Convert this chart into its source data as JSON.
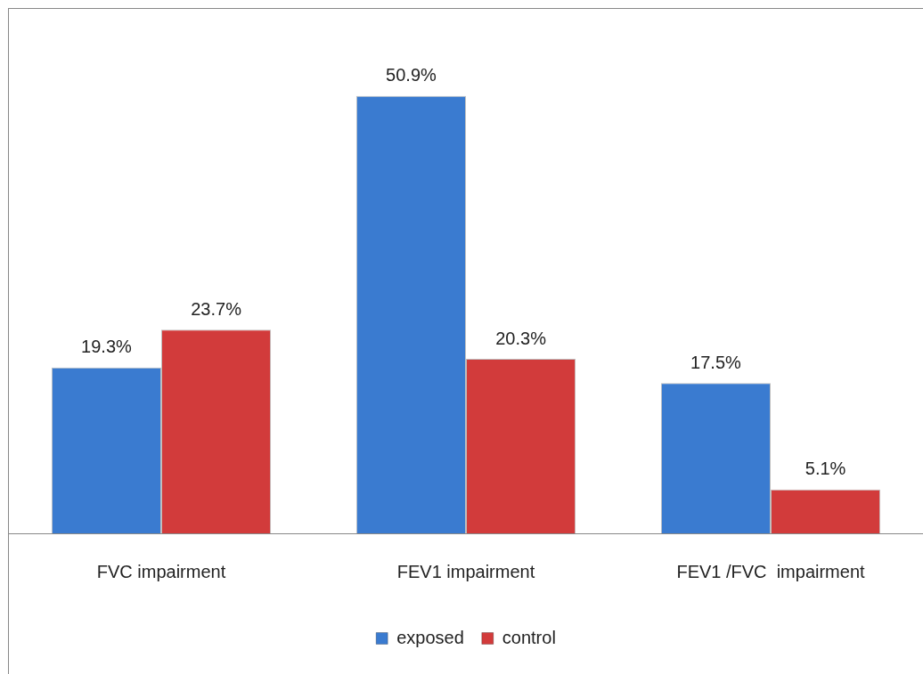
{
  "chart_data": {
    "type": "bar",
    "categories": [
      "FVC impairment",
      "FEV1 impairment",
      "FEV1 /FVC  impairment"
    ],
    "series": [
      {
        "name": "exposed",
        "color": "#3a7bd0",
        "values": [
          19.3,
          50.9,
          17.5
        ],
        "value_labels": [
          "19.3%",
          "50.9%",
          "17.5%"
        ]
      },
      {
        "name": "control",
        "color": "#d23b3b",
        "values": [
          23.7,
          20.3,
          5.1
        ],
        "value_labels": [
          "23.7%",
          "20.3%",
          "5.1%"
        ]
      }
    ],
    "tick_labels": "x",
    "grid": false,
    "legend": "bottom"
  }
}
